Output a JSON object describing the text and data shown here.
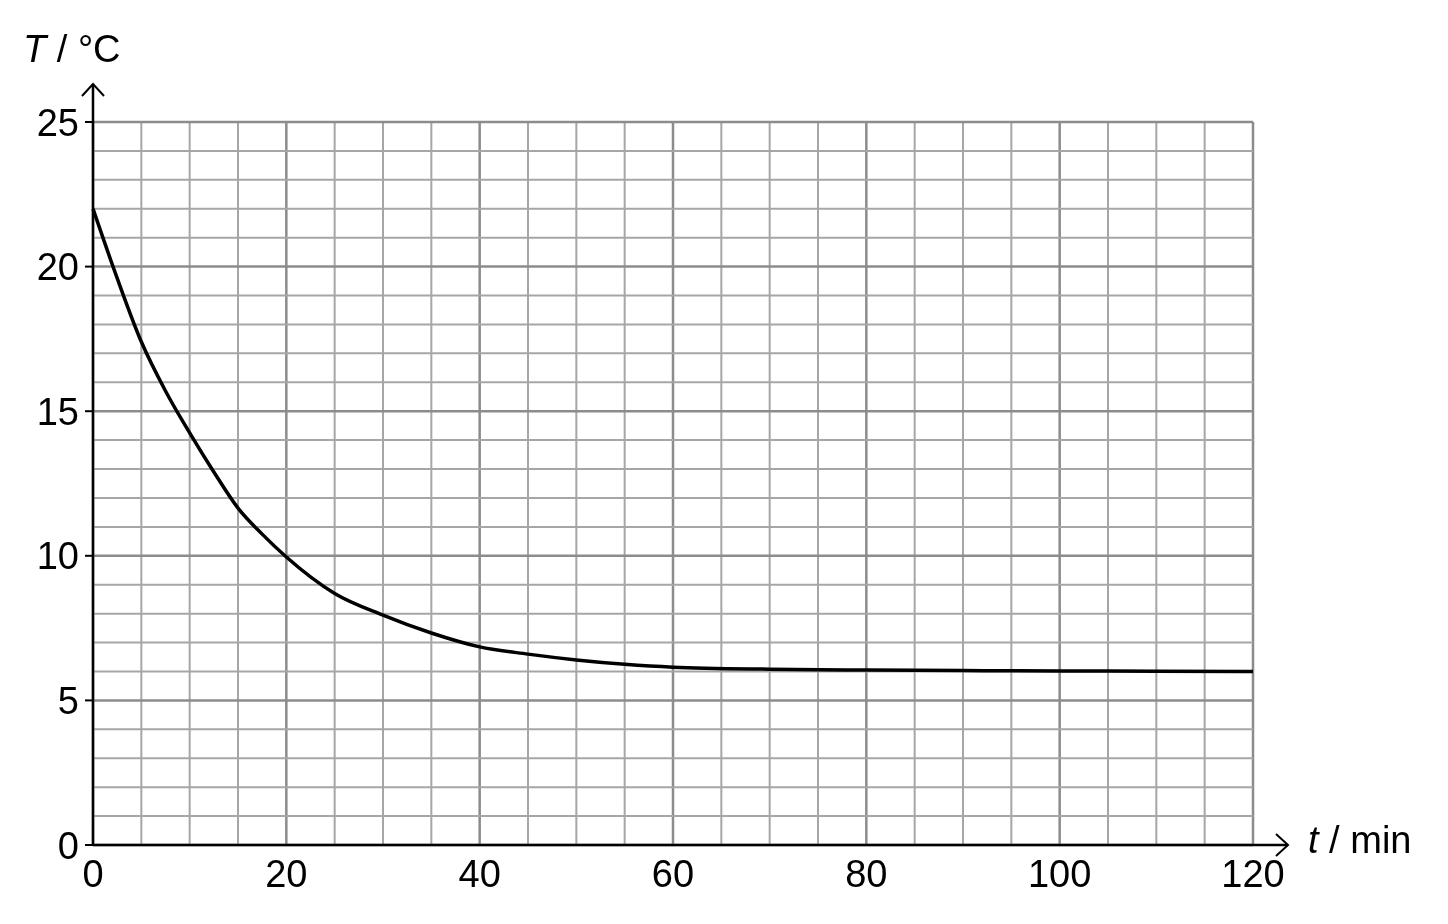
{
  "chart_data": {
    "type": "line",
    "xlabel": "t / min",
    "ylabel": "T / °C",
    "xlim": [
      0,
      120
    ],
    "ylim": [
      0,
      25
    ],
    "xticks": [
      0,
      {
        "value": 5,
        "label": null
      },
      {
        "value": 10,
        "label": null
      },
      {
        "value": 15,
        "label": null
      },
      20,
      {
        "value": 25,
        "label": null
      },
      {
        "value": 30,
        "label": null
      },
      {
        "value": 35,
        "label": null
      },
      40,
      {
        "value": 45,
        "label": null
      },
      {
        "value": 50,
        "label": null
      },
      {
        "value": 55,
        "label": null
      },
      60,
      {
        "value": 65,
        "label": null
      },
      {
        "value": 70,
        "label": null
      },
      {
        "value": 75,
        "label": null
      },
      80,
      {
        "value": 85,
        "label": null
      },
      {
        "value": 90,
        "label": null
      },
      {
        "value": 95,
        "label": null
      },
      100,
      {
        "value": 105,
        "label": null
      },
      {
        "value": 110,
        "label": null
      },
      {
        "value": 115,
        "label": null
      },
      120
    ],
    "yticks": [
      0,
      {
        "value": 1,
        "label": null
      },
      {
        "value": 2,
        "label": null
      },
      {
        "value": 3,
        "label": null
      },
      {
        "value": 4,
        "label": null
      },
      5,
      {
        "value": 6,
        "label": null
      },
      {
        "value": 7,
        "label": null
      },
      {
        "value": 8,
        "label": null
      },
      {
        "value": 9,
        "label": null
      },
      10,
      {
        "value": 11,
        "label": null
      },
      {
        "value": 12,
        "label": null
      },
      {
        "value": 13,
        "label": null
      },
      {
        "value": 14,
        "label": null
      },
      15,
      {
        "value": 16,
        "label": null
      },
      {
        "value": 17,
        "label": null
      },
      {
        "value": 18,
        "label": null
      },
      {
        "value": 19,
        "label": null
      },
      20,
      {
        "value": 21,
        "label": null
      },
      {
        "value": 22,
        "label": null
      },
      {
        "value": 23,
        "label": null
      },
      {
        "value": 24,
        "label": null
      },
      25
    ],
    "grid": true,
    "marker": "none",
    "line_style": "solid",
    "series": [
      {
        "color": "#000000",
        "x": [
          0,
          2.5,
          5,
          7.5,
          10,
          12.5,
          15,
          17.5,
          20,
          25,
          30,
          35,
          40,
          45,
          50,
          55,
          60,
          70,
          80,
          90,
          100,
          110,
          120
        ],
        "values": [
          22,
          19.6,
          17.4,
          15.7,
          14.25,
          12.9,
          11.65,
          10.75,
          9.96,
          8.7,
          7.95,
          7.33,
          6.85,
          6.6,
          6.4,
          6.25,
          6.15,
          6.08,
          6.05,
          6.03,
          6.02,
          6.01,
          6.0
        ]
      }
    ]
  }
}
